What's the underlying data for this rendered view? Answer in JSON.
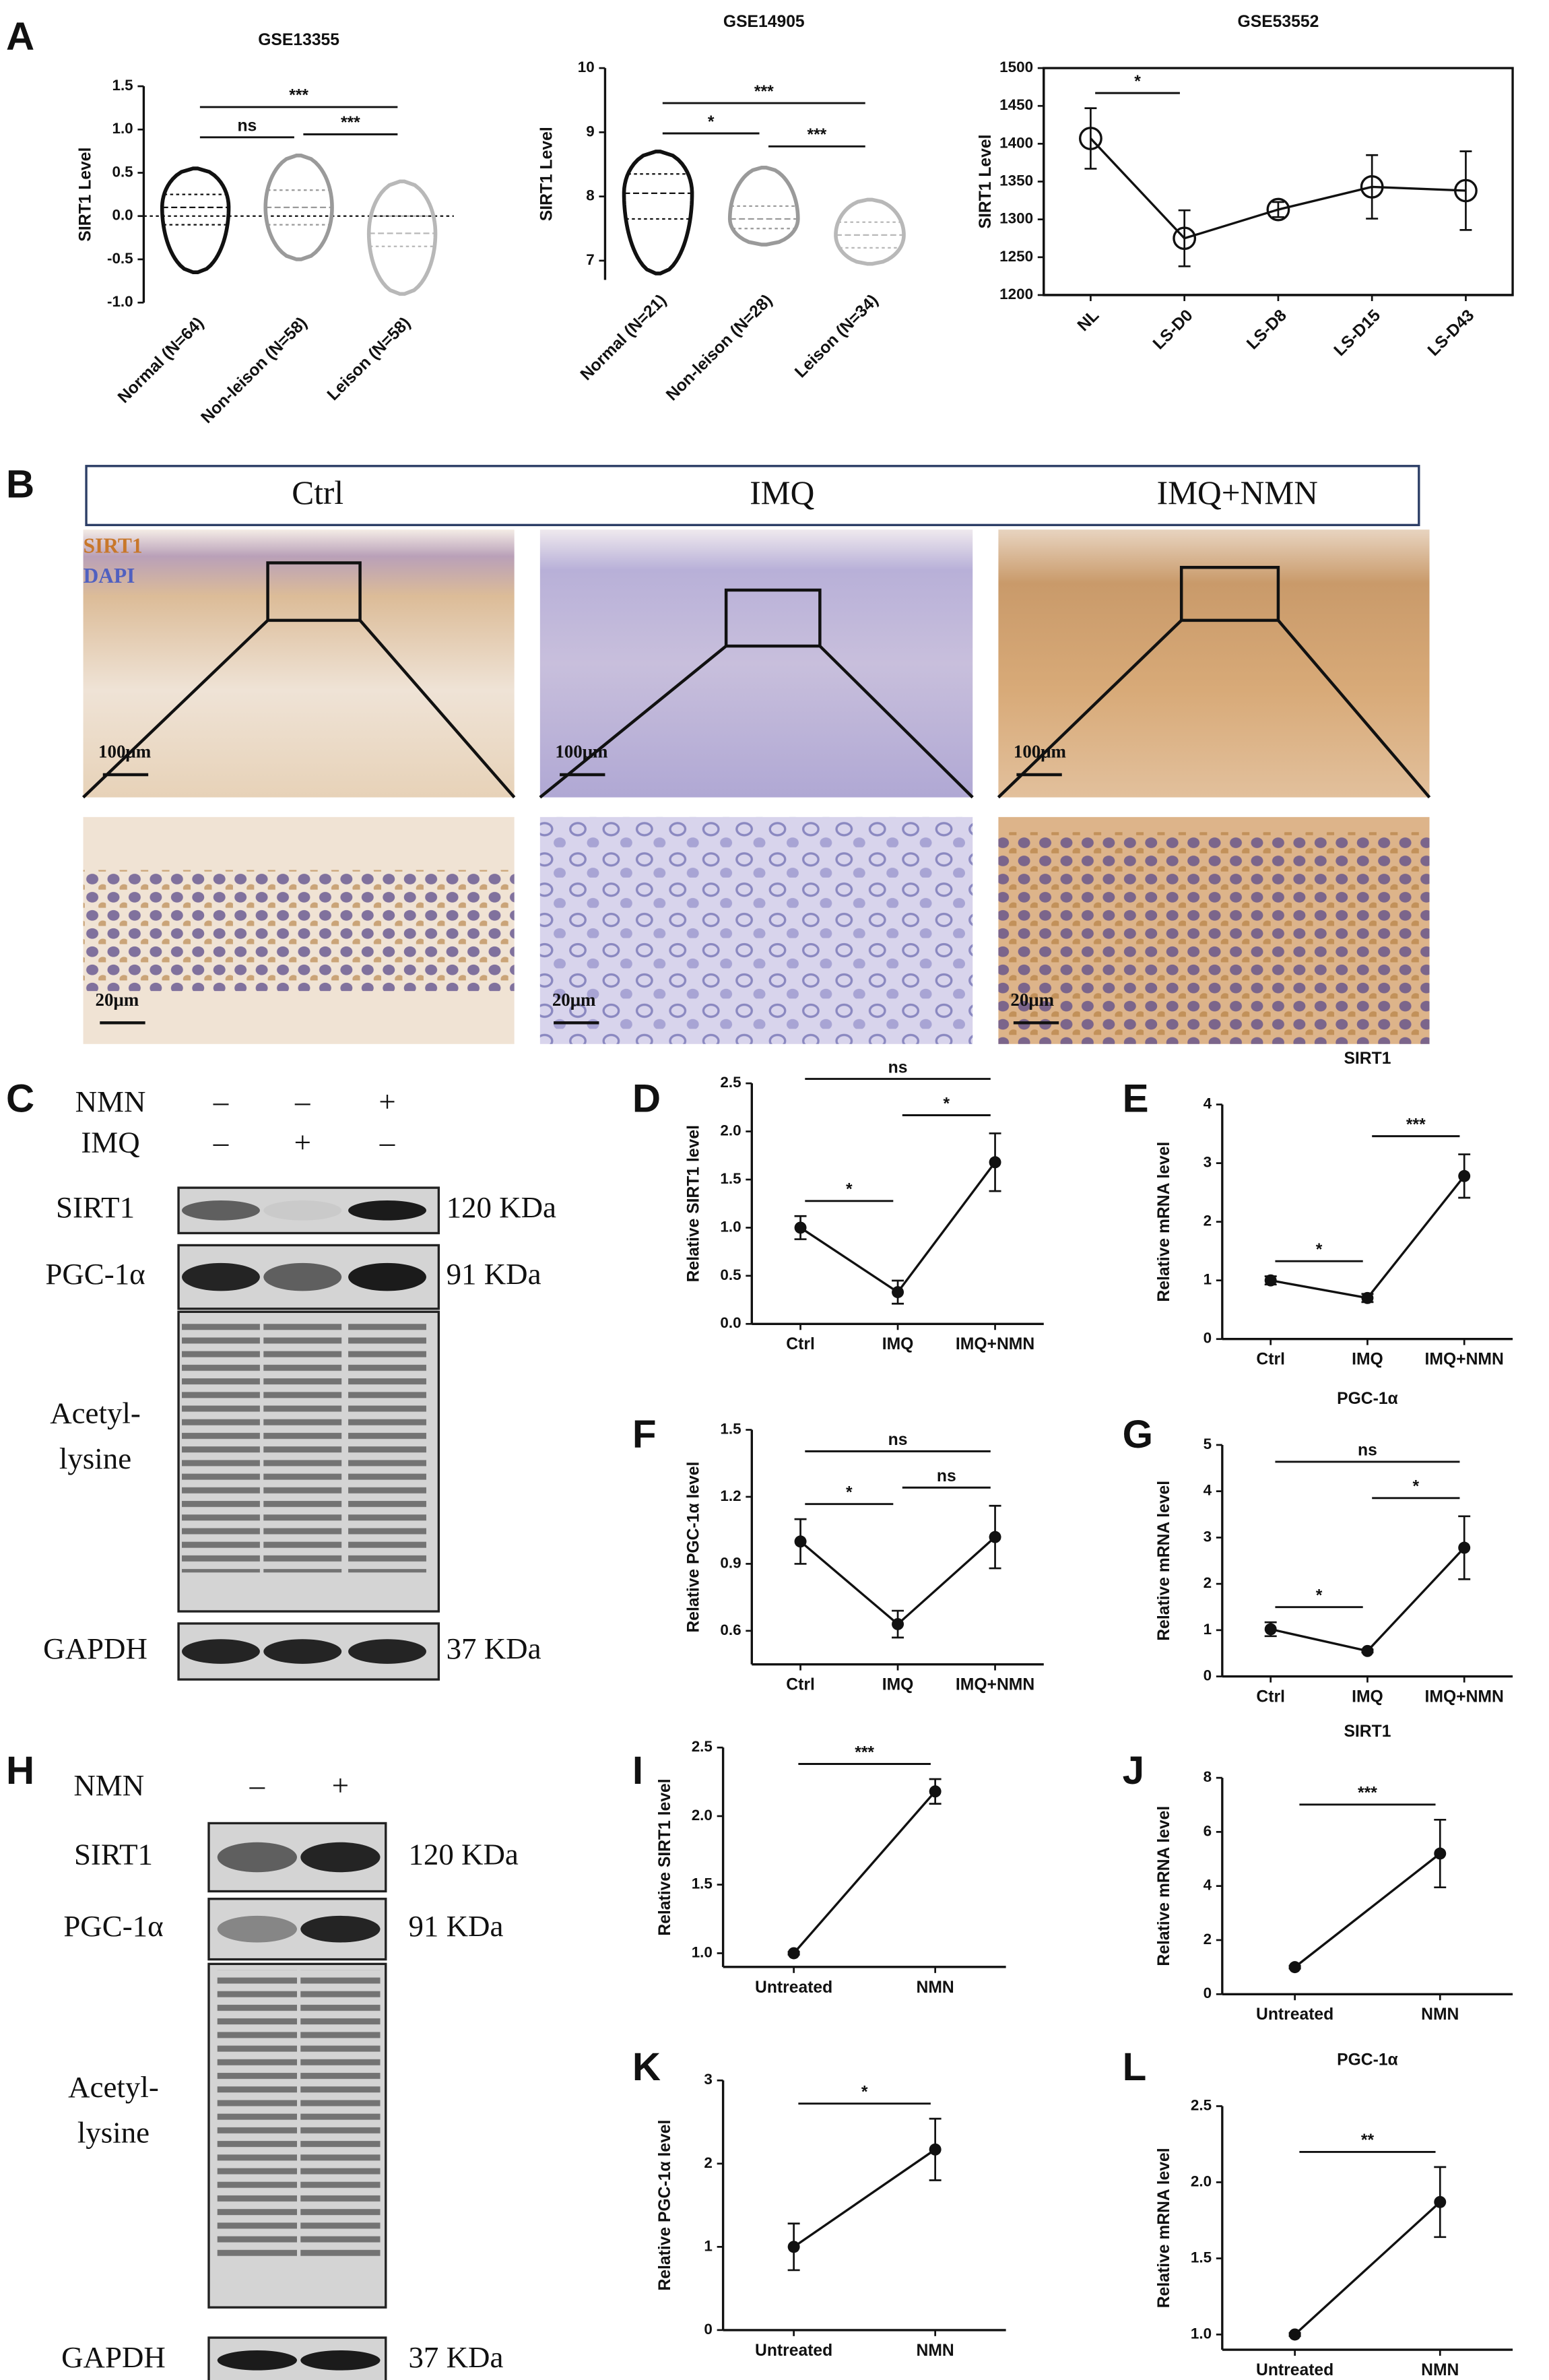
{
  "panel_labels": [
    "A",
    "B",
    "C",
    "D",
    "E",
    "F",
    "G",
    "H",
    "I",
    "J",
    "K",
    "L"
  ],
  "histology": {
    "columns": [
      "Ctrl",
      "IMQ",
      "IMQ+NMN"
    ],
    "stains": [
      "SIRT1",
      "DAPI"
    ],
    "scale_bars": [
      "100μm",
      "20μm"
    ]
  },
  "blot_c": {
    "treatments": [
      {
        "name": "NMN",
        "signs": [
          "–",
          "–",
          "+"
        ]
      },
      {
        "name": "IMQ",
        "signs": [
          "–",
          "+",
          "–"
        ]
      }
    ],
    "rows": [
      {
        "name": "SIRT1",
        "size": "120 KDa"
      },
      {
        "name": "PGC-1α",
        "size": "91 KDa"
      },
      {
        "name": [
          "Acetyl-",
          "lysine"
        ]
      },
      {
        "name": "GAPDH",
        "size": "37 KDa"
      }
    ]
  },
  "blot_h": {
    "treatments": [
      {
        "name": "NMN",
        "signs": [
          "–",
          "+"
        ]
      }
    ],
    "rows": [
      {
        "name": "SIRT1",
        "size": "120 KDa"
      },
      {
        "name": "PGC-1α",
        "size": "91 KDa"
      },
      {
        "name": [
          "Acetyl-",
          "lysine"
        ]
      },
      {
        "name": "GAPDH",
        "size": "37 KDa"
      }
    ]
  },
  "chart_data": [
    {
      "type": "violin",
      "title": "GSE13355",
      "y_label": "SIRT1 Level",
      "rotated_labels": true,
      "categories": [
        "Normal (N=64)",
        "Non-leison (N=58)",
        "Leison (N=58)"
      ],
      "min": [
        -0.65,
        -0.5,
        -0.9
      ],
      "q1": [
        -0.1,
        -0.1,
        -0.35
      ],
      "median": [
        0.1,
        0.1,
        -0.2
      ],
      "q3": [
        0.25,
        0.3,
        0
      ],
      "max": [
        0.55,
        0.7,
        0.4
      ],
      "colors": [
        "#111111",
        "#9a9a9a",
        "#b8b8b8"
      ],
      "reference_line": 0,
      "ylim": [
        -1,
        1.5
      ],
      "yticks": [
        {
          "value": -1,
          "label": "-1.0"
        },
        -0.5,
        {
          "value": 0,
          "label": "0.0"
        },
        0.5,
        {
          "value": 1,
          "label": "1.0"
        },
        1.5
      ],
      "annotations": [
        {
          "from": 0,
          "to": 2,
          "label": "***"
        },
        {
          "from": 0,
          "to": 1,
          "label": "ns"
        },
        {
          "from": 1,
          "to": 2,
          "label": "***"
        }
      ]
    },
    {
      "type": "violin",
      "title": "GSE14905",
      "y_label": "SIRT1 Level",
      "rotated_labels": true,
      "categories": [
        "Normal (N=21)",
        "Non-leison (N=28)",
        "Leison (N=34)"
      ],
      "min": [
        6.8,
        7.25,
        6.95
      ],
      "q1": [
        7.65,
        7.5,
        7.2
      ],
      "median": [
        8.05,
        7.65,
        7.4
      ],
      "q3": [
        8.35,
        7.85,
        7.6
      ],
      "max": [
        8.7,
        8.45,
        7.95
      ],
      "colors": [
        "#111111",
        "#9a9a9a",
        "#b8b8b8"
      ],
      "ylim": [
        6.7,
        10
      ],
      "yticks": [
        7,
        8,
        9,
        10
      ],
      "annotations": [
        {
          "from": 0,
          "to": 2,
          "label": "***"
        },
        {
          "from": 0,
          "to": 1,
          "label": "*"
        },
        {
          "from": 1,
          "to": 2,
          "label": "***"
        }
      ]
    },
    {
      "type": "line",
      "title": "GSE53552",
      "y_label": "SIRT1 Level",
      "rotated_labels": true,
      "marker": "open-circle",
      "frame": true,
      "categories": [
        "NL",
        "LS-D0",
        "LS-D8",
        "LS-D15",
        "LS-D43"
      ],
      "values": [
        1407,
        1275,
        1313,
        1343,
        1338
      ],
      "errors": [
        40,
        37,
        10,
        42,
        52
      ],
      "color": "#111111",
      "ylim": [
        1200,
        1500
      ],
      "yticks": [
        1200,
        1250,
        1300,
        1350,
        1400,
        1450,
        1500
      ],
      "annotations": [
        {
          "from": 0,
          "to": 1,
          "label": "*"
        }
      ]
    },
    {
      "type": "line",
      "y_label": "Relative SIRT1 level",
      "marker": "dot",
      "color": "#111111",
      "categories": [
        "Ctrl",
        "IMQ",
        "IMQ+NMN"
      ],
      "values": [
        1.0,
        0.33,
        1.68
      ],
      "errors": [
        0.12,
        0.12,
        0.3
      ],
      "ylim": [
        0,
        2.5
      ],
      "yticks": [
        {
          "value": 0,
          "label": "0.0"
        },
        0.5,
        {
          "value": 1,
          "label": "1.0"
        },
        1.5,
        {
          "value": 2,
          "label": "2.0"
        },
        2.5
      ],
      "annotations": [
        {
          "from": 0,
          "to": 1,
          "label": "*"
        },
        {
          "from": 1,
          "to": 2,
          "label": "*"
        },
        {
          "from": 0,
          "to": 2,
          "label": "ns"
        }
      ]
    },
    {
      "type": "line",
      "title": "SIRT1",
      "y_label": "Relative mRNA level",
      "marker": "dot",
      "color": "#111111",
      "categories": [
        "Ctrl",
        "IMQ",
        "IMQ+NMN"
      ],
      "values": [
        1.0,
        0.7,
        2.78
      ],
      "errors": [
        0.07,
        0.07,
        0.37
      ],
      "ylim": [
        0,
        4
      ],
      "yticks": [
        0,
        1,
        2,
        3,
        4
      ],
      "annotations": [
        {
          "from": 0,
          "to": 1,
          "label": "*"
        },
        {
          "from": 1,
          "to": 2,
          "label": "***"
        }
      ]
    },
    {
      "type": "line",
      "y_label": "Relative  PGC-1α level",
      "marker": "dot",
      "color": "#111111",
      "categories": [
        "Ctrl",
        "IMQ",
        "IMQ+NMN"
      ],
      "values": [
        1.0,
        0.63,
        1.02
      ],
      "errors": [
        0.1,
        0.06,
        0.14
      ],
      "ylim": [
        0.45,
        1.5
      ],
      "yticks": [
        0.6,
        0.9,
        1.2,
        1.5
      ],
      "annotations": [
        {
          "from": 0,
          "to": 1,
          "label": "*"
        },
        {
          "from": 1,
          "to": 2,
          "label": "ns"
        },
        {
          "from": 0,
          "to": 2,
          "label": "ns"
        }
      ]
    },
    {
      "type": "line",
      "title": "PGC-1α",
      "y_label": "Relative mRNA level",
      "marker": "dot",
      "color": "#111111",
      "categories": [
        "Ctrl",
        "IMQ",
        "IMQ+NMN"
      ],
      "values": [
        1.02,
        0.55,
        2.78
      ],
      "errors": [
        0.15,
        0.03,
        0.68
      ],
      "ylim": [
        0,
        5
      ],
      "yticks": [
        0,
        1,
        2,
        3,
        4,
        5
      ],
      "annotations": [
        {
          "from": 0,
          "to": 1,
          "label": "*"
        },
        {
          "from": 1,
          "to": 2,
          "label": "*"
        },
        {
          "from": 0,
          "to": 2,
          "label": "ns"
        }
      ]
    },
    {
      "type": "line",
      "y_label": "Relative SIRT1 level",
      "marker": "dot",
      "color": "#111111",
      "categories": [
        "Untreated",
        "NMN"
      ],
      "values": [
        1.0,
        2.18
      ],
      "errors": [
        0.01,
        0.09
      ],
      "ylim": [
        0.9,
        2.5
      ],
      "yticks": [
        {
          "value": 1,
          "label": "1.0"
        },
        1.5,
        {
          "value": 2,
          "label": "2.0"
        },
        2.5
      ],
      "annotations": [
        {
          "from": 0,
          "to": 1,
          "label": "***"
        }
      ]
    },
    {
      "type": "line",
      "title": "SIRT1",
      "y_label": "Relative mRNA level",
      "marker": "dot",
      "color": "#111111",
      "categories": [
        "Untreated",
        "NMN"
      ],
      "values": [
        1.0,
        5.2
      ],
      "errors": [
        0.05,
        1.25
      ],
      "ylim": [
        0,
        8
      ],
      "yticks": [
        0,
        2,
        4,
        6,
        8
      ],
      "annotations": [
        {
          "from": 0,
          "to": 1,
          "label": "***"
        }
      ]
    },
    {
      "type": "line",
      "y_label": "Relative  PGC-1α level",
      "marker": "dot",
      "color": "#111111",
      "categories": [
        "Untreated",
        "NMN"
      ],
      "values": [
        1.0,
        2.17
      ],
      "errors": [
        0.28,
        0.37
      ],
      "ylim": [
        0,
        3
      ],
      "yticks": [
        0,
        1,
        2,
        3
      ],
      "annotations": [
        {
          "from": 0,
          "to": 1,
          "label": "*"
        }
      ]
    },
    {
      "type": "line",
      "title": "PGC-1α",
      "y_label": "Relative mRNA level",
      "marker": "dot",
      "color": "#111111",
      "categories": [
        "Untreated",
        "NMN"
      ],
      "values": [
        1.0,
        1.87
      ],
      "errors": [
        0.01,
        0.23
      ],
      "ylim": [
        0.9,
        2.5
      ],
      "yticks": [
        {
          "value": 1,
          "label": "1.0"
        },
        1.5,
        {
          "value": 2,
          "label": "2.0"
        },
        2.5
      ],
      "annotations": [
        {
          "from": 0,
          "to": 1,
          "label": "**"
        }
      ]
    }
  ]
}
